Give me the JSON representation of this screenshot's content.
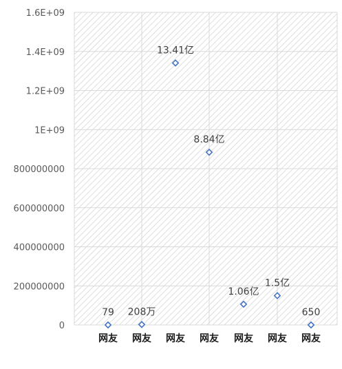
{
  "chart_data": {
    "type": "scatter",
    "title": "",
    "xlabel": "",
    "ylabel": "",
    "ylim": [
      0,
      1600000000
    ],
    "y_ticks": [
      {
        "value": 0,
        "label": "0"
      },
      {
        "value": 200000000,
        "label": "200000000"
      },
      {
        "value": 400000000,
        "label": "400000000"
      },
      {
        "value": 600000000,
        "label": "600000000"
      },
      {
        "value": 800000000,
        "label": "800000000"
      },
      {
        "value": 1000000000,
        "label": "1E+09"
      },
      {
        "value": 1200000000,
        "label": "1.2E+09"
      },
      {
        "value": 1400000000,
        "label": "1.4E+09"
      },
      {
        "value": 1600000000,
        "label": "1.6E+09"
      }
    ],
    "categories": [
      "网友",
      "网友",
      "网友",
      "网友",
      "网友",
      "网友",
      "网友"
    ],
    "points": [
      {
        "category_index": 0,
        "y": 79,
        "label": "79"
      },
      {
        "category_index": 1,
        "y": 2080000,
        "label": "208万"
      },
      {
        "category_index": 2,
        "y": 1341000000,
        "label": "13.41亿"
      },
      {
        "category_index": 3,
        "y": 884000000,
        "label": "8.84亿"
      },
      {
        "category_index": 4,
        "y": 106000000,
        "label": "1.06亿"
      },
      {
        "category_index": 5,
        "y": 150000000,
        "label": "1.5亿"
      },
      {
        "category_index": 6,
        "y": 650,
        "label": "650"
      }
    ],
    "grid": true,
    "plot_background": "diagonal-hatch",
    "colors": {
      "marker": "#4472c4",
      "gridline": "#d9d9d9",
      "hatch": "#d0d0d0",
      "tick_text": "#595959",
      "category_text": "#1a1a1a"
    }
  }
}
